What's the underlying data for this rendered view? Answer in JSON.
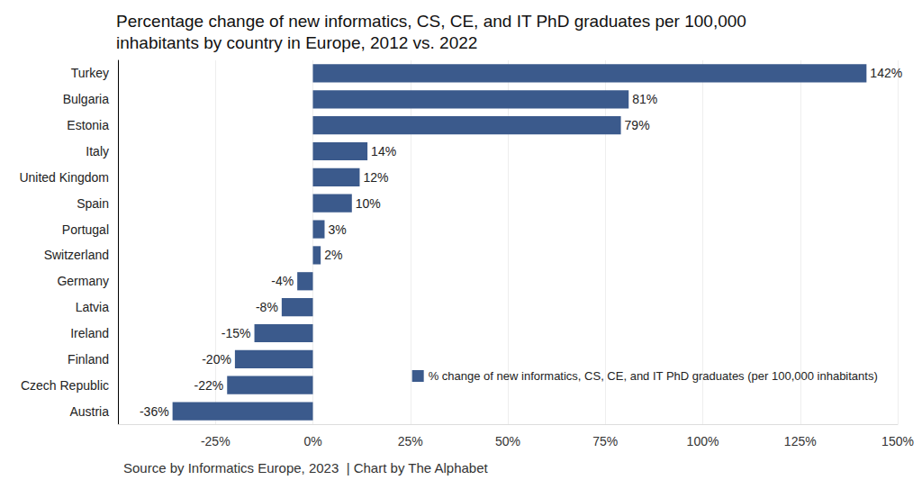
{
  "chart_data": {
    "type": "bar",
    "orientation": "horizontal",
    "title": "Percentage change of new informatics, CS, CE, and IT PhD graduates per 100,000\ninhabitants by country in Europe, 2012 vs. 2022",
    "annotations": [
      "Source by Informatics Europe, 2023  | Chart by The Alphabet"
    ],
    "categories": [
      "Turkey",
      "Bulgaria",
      "Estonia",
      "Italy",
      "United Kingdom",
      "Spain",
      "Portugal",
      "Switzerland",
      "Germany",
      "Latvia",
      "Ireland",
      "Finland",
      "Czech Republic",
      "Austria"
    ],
    "series": [
      {
        "name": "% change of new informatics, CS, CE, and IT PhD graduates (per 100,000 inhabitants)",
        "color": "#3b5a8c",
        "values": [
          142,
          81,
          79,
          14,
          12,
          10,
          3,
          2,
          -4,
          -8,
          -15,
          -20,
          -22,
          -36
        ],
        "value_labels": [
          "142%",
          "81%",
          "79%",
          "14%",
          "12%",
          "10%",
          "3%",
          "2%",
          "-4%",
          "-8%",
          "-15%",
          "-20%",
          "-22%",
          "-36%"
        ]
      }
    ],
    "xlim": [
      -50,
      150
    ],
    "xticks": [
      {
        "value": -25,
        "label": "-25%"
      },
      {
        "value": 0,
        "label": "0%"
      },
      {
        "value": 25,
        "label": "25%"
      },
      {
        "value": 50,
        "label": "50%"
      },
      {
        "value": 75,
        "label": "75%"
      },
      {
        "value": 100,
        "label": "100%"
      },
      {
        "value": 125,
        "label": "125%"
      },
      {
        "value": 150,
        "label": "150%"
      }
    ],
    "grid": true,
    "data_labels": true,
    "legend": "lower right"
  }
}
